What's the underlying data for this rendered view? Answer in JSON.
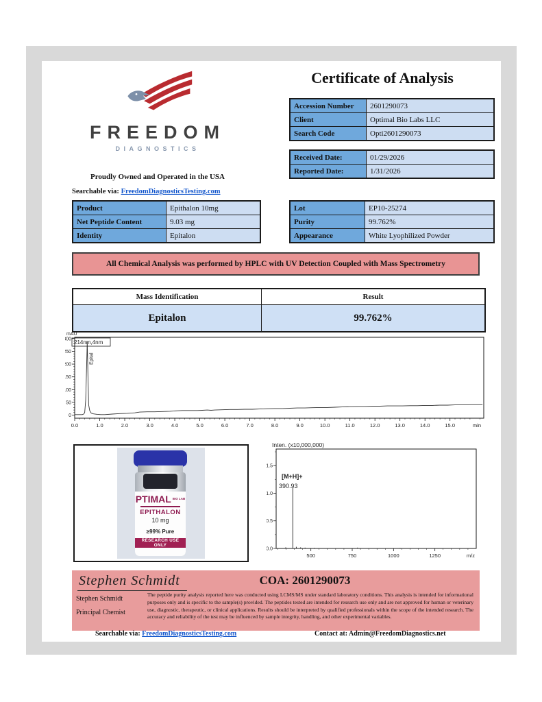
{
  "title": "Certificate of Analysis",
  "logo": {
    "brand": "FREEDOM",
    "subbrand": "DIAGNOSTICS",
    "tagline": "Proudly Owned and Operated in the USA",
    "search_label": "Searchable via:",
    "search_link": "FreedomDiagnosticsTesting.com"
  },
  "tables": {
    "info": [
      {
        "label": "Accession Number",
        "value": "2601290073"
      },
      {
        "label": "Client",
        "value": "Optimal Bio Labs LLC"
      },
      {
        "label": "Search Code",
        "value": "Opti2601290073"
      }
    ],
    "dates": [
      {
        "label": "Received Date:",
        "value": "01/29/2026"
      },
      {
        "label": "Reported Date:",
        "value": "1/31/2026"
      }
    ],
    "product": [
      {
        "label": "Product",
        "value": "Epithalon 10mg"
      },
      {
        "label": "Net Peptide Content",
        "value": "9.03 mg"
      },
      {
        "label": "Identity",
        "value": "Epitalon"
      }
    ],
    "lot": [
      {
        "label": "Lot",
        "value": "EP10-25274"
      },
      {
        "label": "Purity",
        "value": "99.762%"
      },
      {
        "label": "Appearance",
        "value": "White Lyophilized Powder"
      }
    ]
  },
  "banner": "All Chemical Analysis was performed by HPLC with UV Detection Coupled with Mass Spectrometry",
  "mass": {
    "h1": "Mass Identification",
    "h2": "Result",
    "r1": "Epitalon",
    "r2": "99.762%"
  },
  "vial": {
    "brand": "PTIMAL",
    "brand_suffix": "BIO LAB",
    "product": "EPITHALON",
    "dose": "10 mg",
    "purity": "≥99% Pure",
    "band": "RESEARCH USE ONLY"
  },
  "footer": {
    "signature": "Stephen Schmidt",
    "name": "Stephen Schmidt",
    "role": "Principal Chemist",
    "coa": "COA: 2601290073",
    "disclaimer": "The peptide purity analysis reported here was conducted using LCMS/MS under standard laboratory conditions. This analysis is intended for informational purposes only and is specific to the sample(s) provided. The peptides tested are intended for research use only and are not approved for human or veterinary use, diagnostic, therapeutic, or clinical applications. Results should be interpreted by qualified professionals within the scope of the intended research. The accuracy and reliability of the test may be influenced by sample integrity, handling, and other experimental variables.",
    "search_label": "Searchable via:",
    "search_link": "FreedomDiagnosticsTesting.com",
    "contact": "Contact at: Admin@FreedomDiagnostics.net"
  },
  "colors": {
    "label_cell": "#6fa8dc",
    "value_cell": "#cdddf2",
    "mass_row": "#cfe0f5",
    "banner_pink": "#e89494",
    "footer_pink": "#e89c9c",
    "link_blue": "#1155cc",
    "frame_gray": "#d9d9d9",
    "logo_red": "#b92b30",
    "logo_slate": "#7d90a9",
    "vial_cap_blue": "#2a33a8",
    "vial_magenta": "#8e1a50"
  },
  "chart_data": [
    {
      "type": "line",
      "name": "hplc-uv-chromatogram",
      "ylabel": "mAU",
      "xlabel": "min",
      "xlim": [
        0,
        16.35
      ],
      "ylim": [
        -12,
        305
      ],
      "yticks": [
        0,
        50,
        100,
        150,
        200,
        250,
        300
      ],
      "xtick_step": 1.0,
      "xtick_max": 15,
      "wavelength_label": "214nm,4nm",
      "peak_label": "Epital",
      "peak_retention_min": 0.5,
      "peak_mau": 288,
      "points": [
        [
          0,
          2
        ],
        [
          0.3,
          2
        ],
        [
          0.36,
          4
        ],
        [
          0.4,
          10
        ],
        [
          0.44,
          60
        ],
        [
          0.48,
          200
        ],
        [
          0.5,
          288
        ],
        [
          0.53,
          150
        ],
        [
          0.56,
          40
        ],
        [
          0.6,
          18
        ],
        [
          0.66,
          8
        ],
        [
          0.75,
          5
        ],
        [
          0.9,
          3
        ],
        [
          1.05,
          2
        ],
        [
          1.2,
          2
        ],
        [
          1.5,
          4
        ],
        [
          1.8,
          6
        ],
        [
          2.1,
          7
        ],
        [
          2.4,
          9
        ],
        [
          2.6,
          12
        ],
        [
          2.9,
          13
        ],
        [
          3.2,
          13
        ],
        [
          3.5,
          14
        ],
        [
          3.8,
          15
        ],
        [
          4.1,
          17
        ],
        [
          4.3,
          18
        ],
        [
          4.6,
          18
        ],
        [
          4.9,
          18
        ],
        [
          5.1,
          19
        ],
        [
          5.3,
          20
        ],
        [
          5.45,
          19
        ],
        [
          5.6,
          20
        ],
        [
          5.9,
          21
        ],
        [
          6.2,
          22
        ],
        [
          6.5,
          22
        ],
        [
          6.8,
          23
        ],
        [
          7.1,
          23
        ],
        [
          7.4,
          24
        ],
        [
          7.7,
          25
        ],
        [
          8.0,
          26
        ],
        [
          8.3,
          26
        ],
        [
          8.6,
          27
        ],
        [
          8.9,
          28
        ],
        [
          9.2,
          28
        ],
        [
          9.5,
          29
        ],
        [
          9.8,
          30
        ],
        [
          10.1,
          30
        ],
        [
          10.4,
          31
        ],
        [
          10.7,
          32
        ],
        [
          11.0,
          33
        ],
        [
          11.3,
          34
        ],
        [
          11.6,
          34
        ],
        [
          11.9,
          35
        ],
        [
          12.2,
          35
        ],
        [
          12.5,
          36
        ],
        [
          12.8,
          36
        ],
        [
          13.1,
          36
        ],
        [
          13.4,
          37
        ],
        [
          13.7,
          37
        ],
        [
          14.0,
          38
        ],
        [
          14.3,
          38
        ],
        [
          14.6,
          39
        ],
        [
          14.9,
          39
        ],
        [
          15.2,
          40
        ],
        [
          15.5,
          40
        ],
        [
          15.9,
          41
        ],
        [
          16.3,
          41
        ]
      ]
    },
    {
      "type": "stick",
      "name": "mass-spectrum",
      "title": "Inten. (x10,000,000)",
      "xlabel": "m/z",
      "xlim": [
        290,
        1500
      ],
      "ylim": [
        0,
        1.8
      ],
      "xticks": [
        500,
        750,
        1000,
        1250
      ],
      "xtick_minor_step": 50,
      "yticks": [
        0.0,
        0.5,
        1.0,
        1.5
      ],
      "ytick_minor_step": 0.25,
      "annotation": {
        "line1": "[M+H]+",
        "line2": "390.93"
      },
      "peaks": [
        [
          390.93,
          1.1
        ],
        [
          348,
          0.02
        ],
        [
          412,
          0.03
        ],
        [
          438,
          0.02
        ],
        [
          465,
          0.015
        ],
        [
          520,
          0.012
        ],
        [
          782,
          0.015
        ],
        [
          1040,
          0.01
        ]
      ]
    }
  ]
}
